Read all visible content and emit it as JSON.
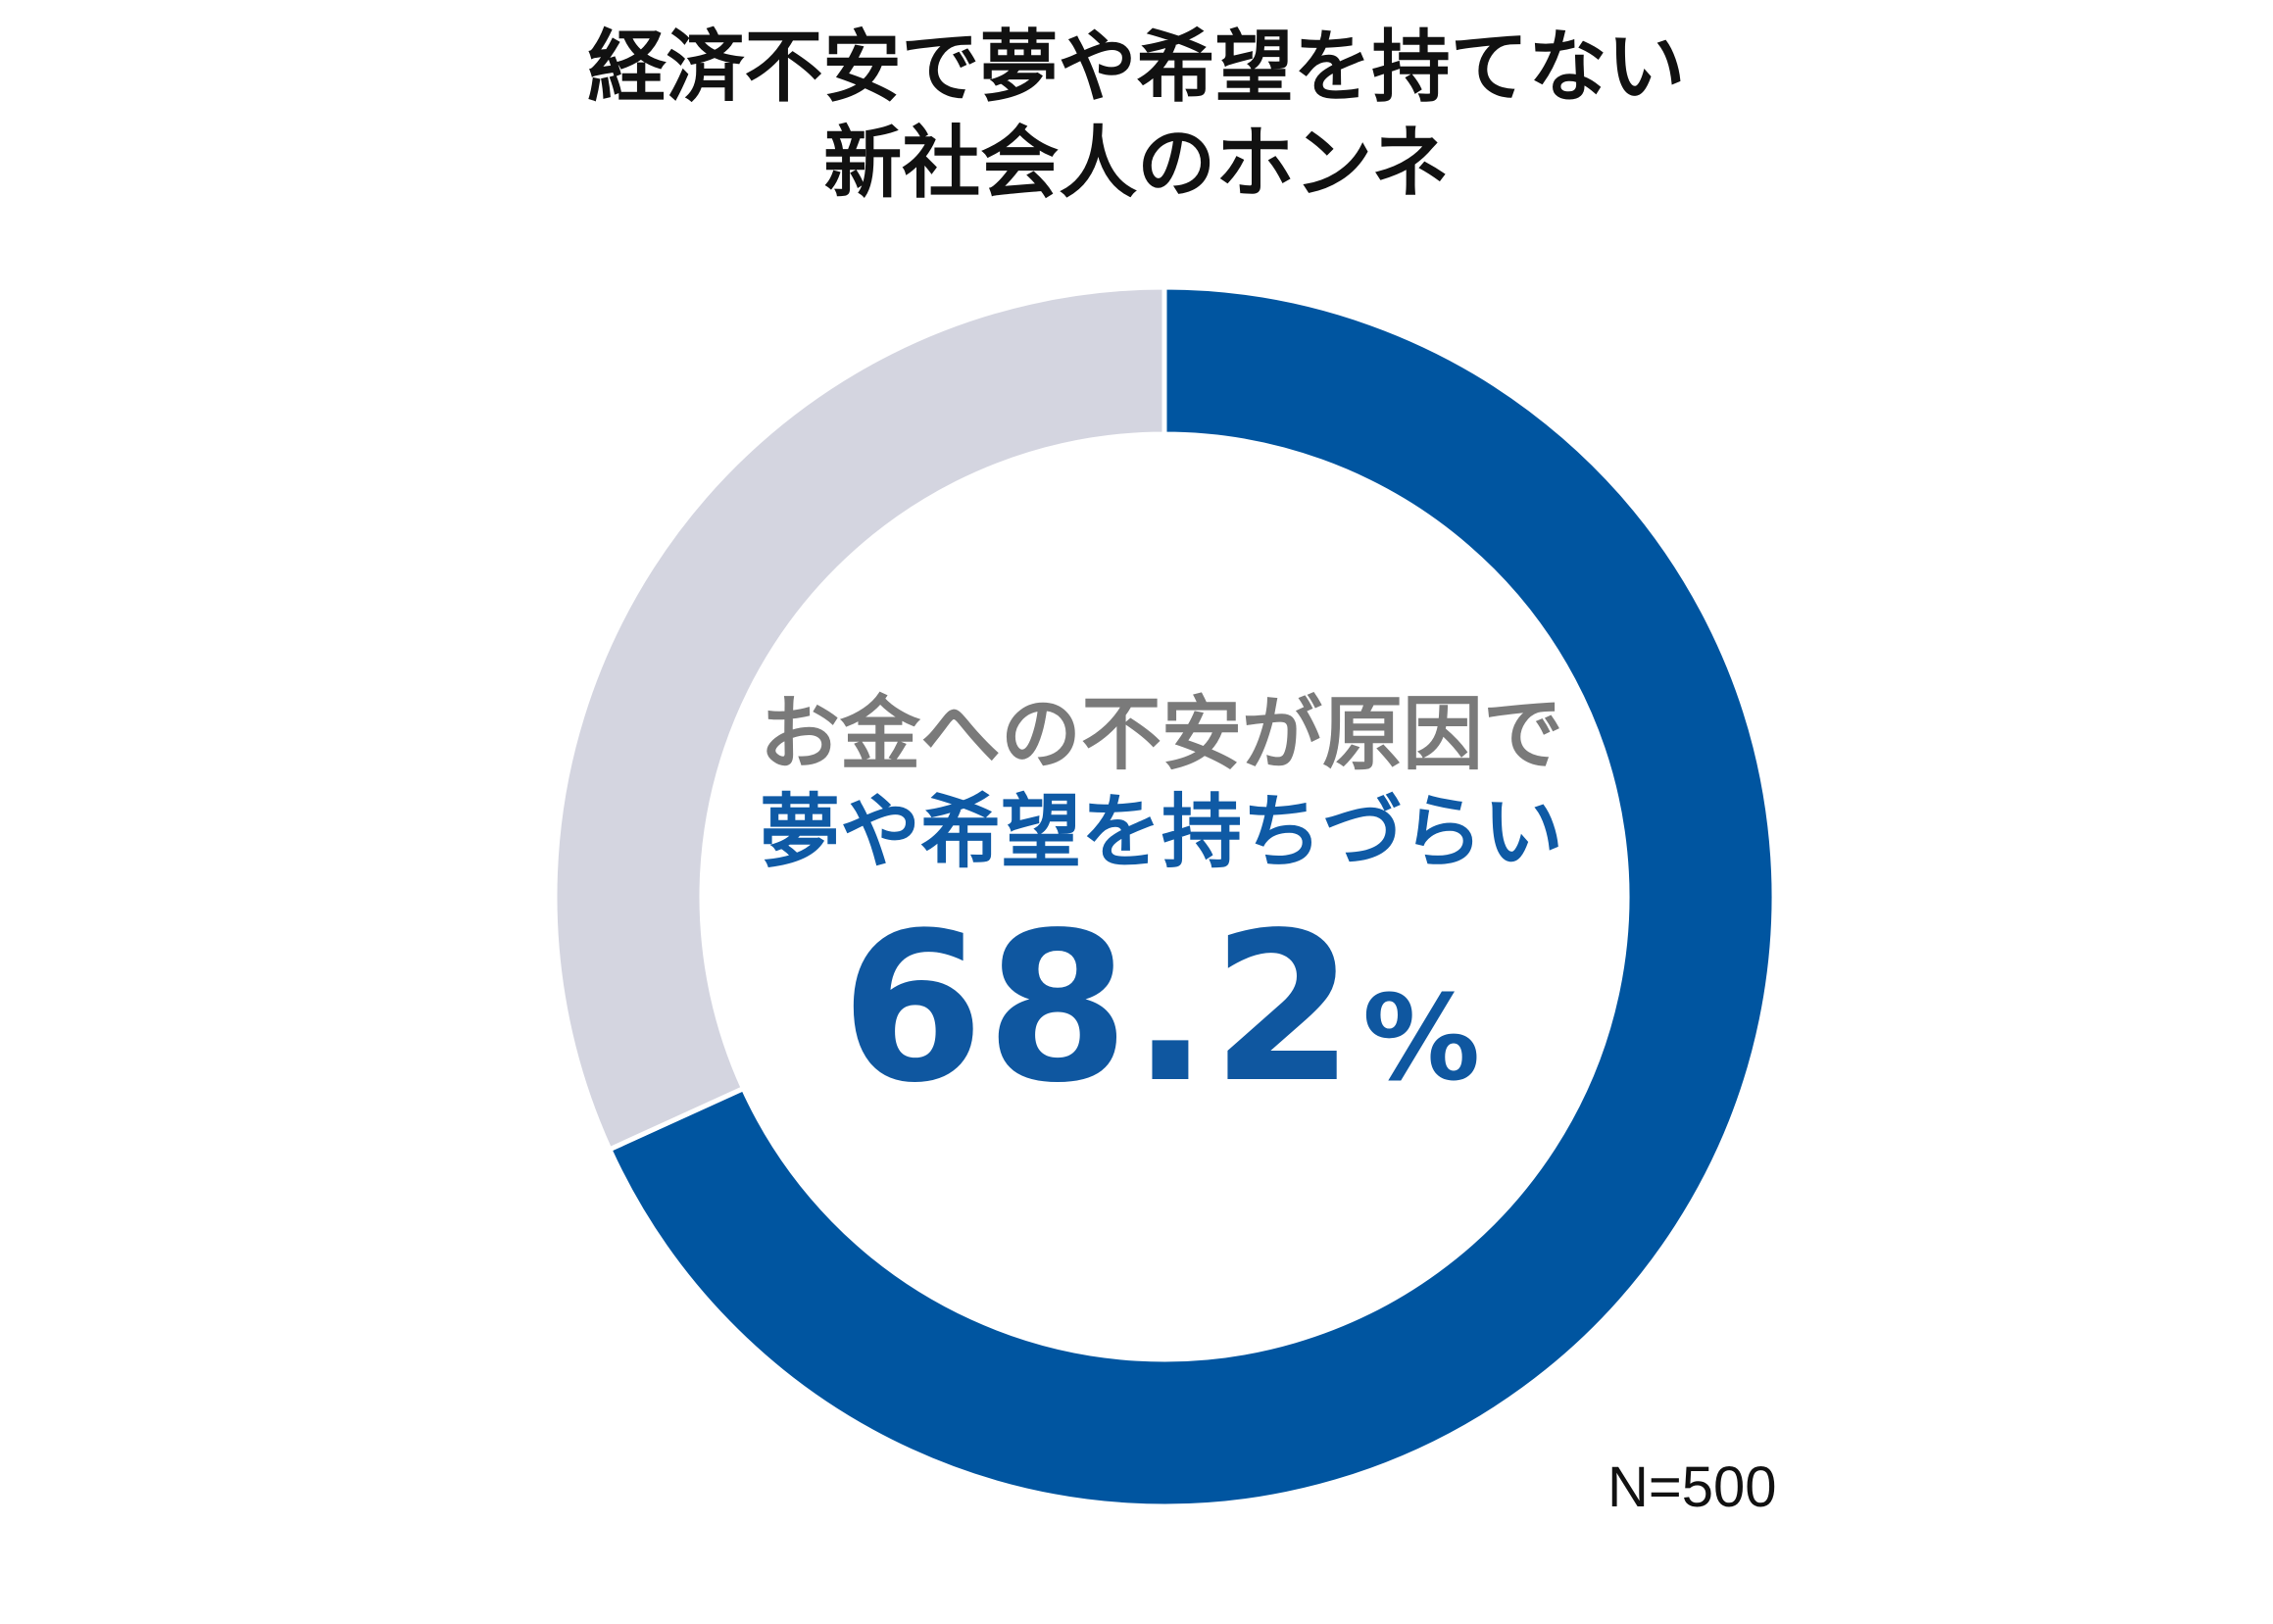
{
  "chart_data": {
    "type": "pie",
    "title_lines": [
      "経済不安で夢や希望を持てない",
      "新社会人のホンネ"
    ],
    "categories": [
      "お金への不安が原因で夢や希望を持ちづらい",
      ""
    ],
    "values": [
      68.2,
      31.8
    ],
    "colors": [
      "#0055a0",
      "#d4d5e0"
    ],
    "center_text_line1": "お金への不安が原因で",
    "center_text_line2": "夢や希望を持ちづらい",
    "center_value": "68.2",
    "center_unit": "%",
    "sample_size": "N=500"
  }
}
